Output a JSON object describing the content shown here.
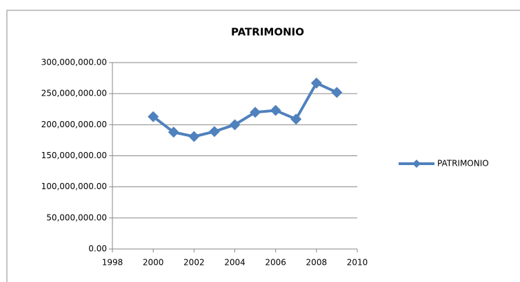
{
  "chart_data": {
    "type": "line",
    "title": "PATRIMONIO",
    "x": [
      2000,
      2001,
      2002,
      2003,
      2004,
      2005,
      2006,
      2007,
      2008,
      2009
    ],
    "series": [
      {
        "name": "PATRIMONIO",
        "color": "#4f81bd",
        "values": [
          213000000,
          188000000,
          181000000,
          189000000,
          200000000,
          220000000,
          223000000,
          209000000,
          267000000,
          252000000
        ]
      }
    ],
    "xlim": [
      1998,
      2010
    ],
    "xticks": [
      1998,
      2000,
      2002,
      2004,
      2006,
      2008,
      2010
    ],
    "ylim": [
      0,
      300000000
    ],
    "yticks": [
      {
        "value": 0,
        "label": "0.00"
      },
      {
        "value": 50000000,
        "label": "50,000,000.00"
      },
      {
        "value": 100000000,
        "label": "100,000,000.00"
      },
      {
        "value": 150000000,
        "label": "150,000,000.00"
      },
      {
        "value": 200000000,
        "label": "200,000,000.00"
      },
      {
        "value": 250000000,
        "label": "250,000,000.00"
      },
      {
        "value": 300000000,
        "label": "300,000,000.00"
      }
    ],
    "grid": true,
    "legend": "right"
  }
}
